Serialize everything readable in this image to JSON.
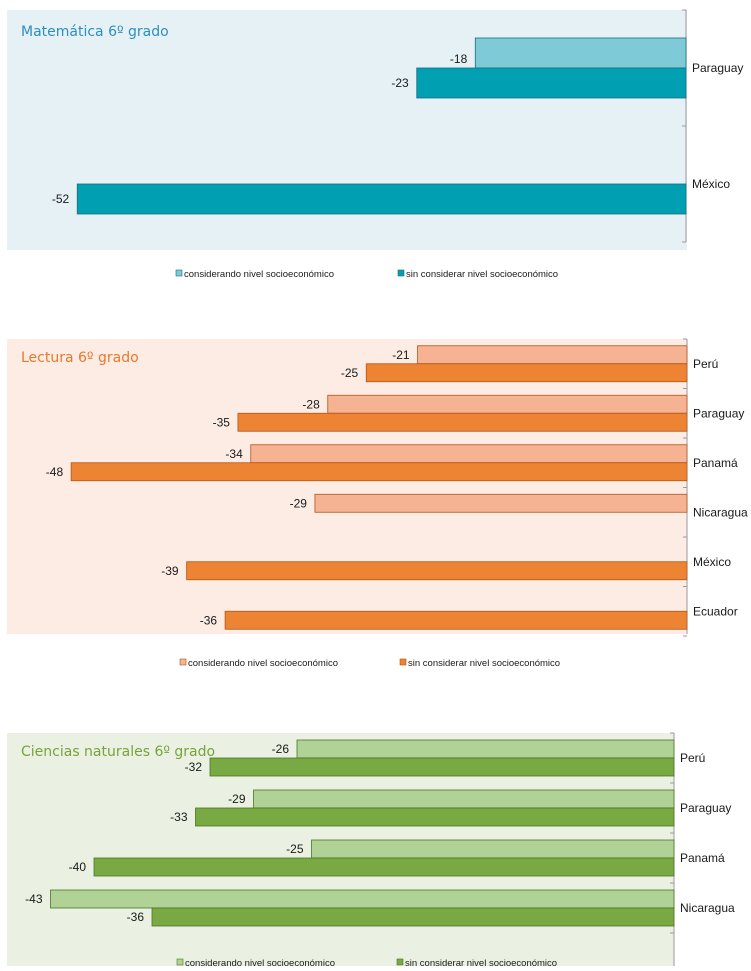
{
  "chart_data": [
    {
      "type": "bar",
      "orientation": "horizontal",
      "title": "Matemática 6º grado",
      "categories": [
        "Paraguay",
        "México"
      ],
      "series": [
        {
          "name": "considerando nivel socioeconómico",
          "values": [
            -18,
            null
          ]
        },
        {
          "name": "sin considerar nivel socioeconómico",
          "values": [
            -23,
            -52
          ]
        }
      ],
      "xlim": [
        -58,
        0
      ],
      "colors": {
        "light": "#7ecad6",
        "dark": "#009fb2",
        "background": "#e5f1f4",
        "title": "#2d8fc0",
        "edge": "#1b6e80"
      },
      "legend": "bottom"
    },
    {
      "type": "bar",
      "orientation": "horizontal",
      "title": "Lectura 6º grado",
      "categories": [
        "Perú",
        "Paraguay",
        "Panamá",
        "Nicaragua",
        "México",
        "Ecuador"
      ],
      "series": [
        {
          "name": "considerando nivel socioeconómico",
          "values": [
            -21,
            -28,
            -34,
            -29,
            null,
            null
          ]
        },
        {
          "name": "sin considerar nivel socioeconómico",
          "values": [
            -25,
            -35,
            -48,
            null,
            -39,
            -36
          ]
        }
      ],
      "xlim": [
        -53,
        0
      ],
      "colors": {
        "light": "#f6b393",
        "dark": "#ec8433",
        "background": "#fcece4",
        "title": "#e8782d",
        "edge": "#b35417"
      },
      "legend": "bottom"
    },
    {
      "type": "bar",
      "orientation": "horizontal",
      "title": "Ciencias naturales 6º grado",
      "categories": [
        "Perú",
        "Paraguay",
        "Panamá",
        "Nicaragua"
      ],
      "series": [
        {
          "name": "considerando nivel socioeconómico",
          "values": [
            -26,
            -29,
            -25,
            -43
          ]
        },
        {
          "name": "sin considerar nivel socioeconómico",
          "values": [
            -32,
            -33,
            -40,
            -36
          ]
        }
      ],
      "xlim": [
        -46,
        0
      ],
      "colors": {
        "light": "#b1d296",
        "dark": "#78a943",
        "background": "#eaf1e2",
        "title": "#77a33b",
        "edge": "#4d7423"
      },
      "legend": "bottom"
    }
  ]
}
